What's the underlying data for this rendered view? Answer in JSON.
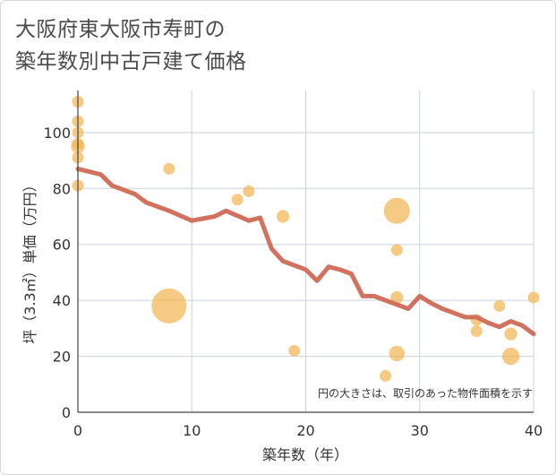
{
  "title": {
    "line1": "大阪府東大阪市寿町の",
    "line2": "築年数別中古戸建て価格"
  },
  "chart_data": {
    "type": "scatter",
    "xlabel": "築年数（年）",
    "ylabel": "坪（3.3㎡）単価（万円）",
    "xlim": [
      0,
      40
    ],
    "ylim": [
      0,
      115
    ],
    "xticks": [
      "0",
      "10",
      "20",
      "30",
      "40"
    ],
    "yticks": [
      "0",
      "20",
      "40",
      "60",
      "80",
      "100"
    ],
    "grid": true,
    "note": "円の大きさは、取引のあった物件面積を示す",
    "colors": {
      "bubble": "#f2b552",
      "line": "#d06a55",
      "grid": "#c8d3df"
    },
    "bubbles": [
      {
        "x": 0,
        "y": 111,
        "size": 1
      },
      {
        "x": 0,
        "y": 104,
        "size": 1
      },
      {
        "x": 0,
        "y": 100,
        "size": 1
      },
      {
        "x": 0,
        "y": 96,
        "size": 1
      },
      {
        "x": 0,
        "y": 95,
        "size": 1.4
      },
      {
        "x": 0,
        "y": 91,
        "size": 1
      },
      {
        "x": 0,
        "y": 81,
        "size": 1
      },
      {
        "x": 8,
        "y": 87,
        "size": 1
      },
      {
        "x": 8,
        "y": 38,
        "size": 9
      },
      {
        "x": 14,
        "y": 76,
        "size": 1
      },
      {
        "x": 15,
        "y": 79,
        "size": 1
      },
      {
        "x": 18,
        "y": 70,
        "size": 1.2
      },
      {
        "x": 19,
        "y": 22,
        "size": 1
      },
      {
        "x": 27,
        "y": 13,
        "size": 1
      },
      {
        "x": 28,
        "y": 72,
        "size": 5
      },
      {
        "x": 28,
        "y": 58,
        "size": 1
      },
      {
        "x": 28,
        "y": 41,
        "size": 1.2
      },
      {
        "x": 28,
        "y": 21,
        "size": 1.8
      },
      {
        "x": 35,
        "y": 33,
        "size": 1
      },
      {
        "x": 35,
        "y": 29,
        "size": 1
      },
      {
        "x": 37,
        "y": 38,
        "size": 1
      },
      {
        "x": 38,
        "y": 28,
        "size": 1.2
      },
      {
        "x": 38,
        "y": 20,
        "size": 2.2
      },
      {
        "x": 40,
        "y": 41,
        "size": 1
      }
    ],
    "trend": {
      "x": [
        0,
        2,
        3,
        5,
        6,
        8,
        10,
        12,
        13,
        15,
        16,
        17,
        18,
        20,
        21,
        22,
        23,
        24,
        25,
        26,
        27,
        28,
        29,
        30,
        31,
        32,
        33,
        34,
        35,
        36,
        37,
        38,
        39,
        40
      ],
      "y": [
        87,
        85,
        81,
        78,
        75,
        72,
        68.5,
        70,
        72,
        68.5,
        69.5,
        58.5,
        54,
        51,
        47,
        52,
        51,
        49.5,
        41.5,
        41.5,
        40,
        38.5,
        37,
        41.5,
        39,
        37,
        35.5,
        34,
        34,
        32,
        30.5,
        32.5,
        31,
        28
      ]
    }
  }
}
